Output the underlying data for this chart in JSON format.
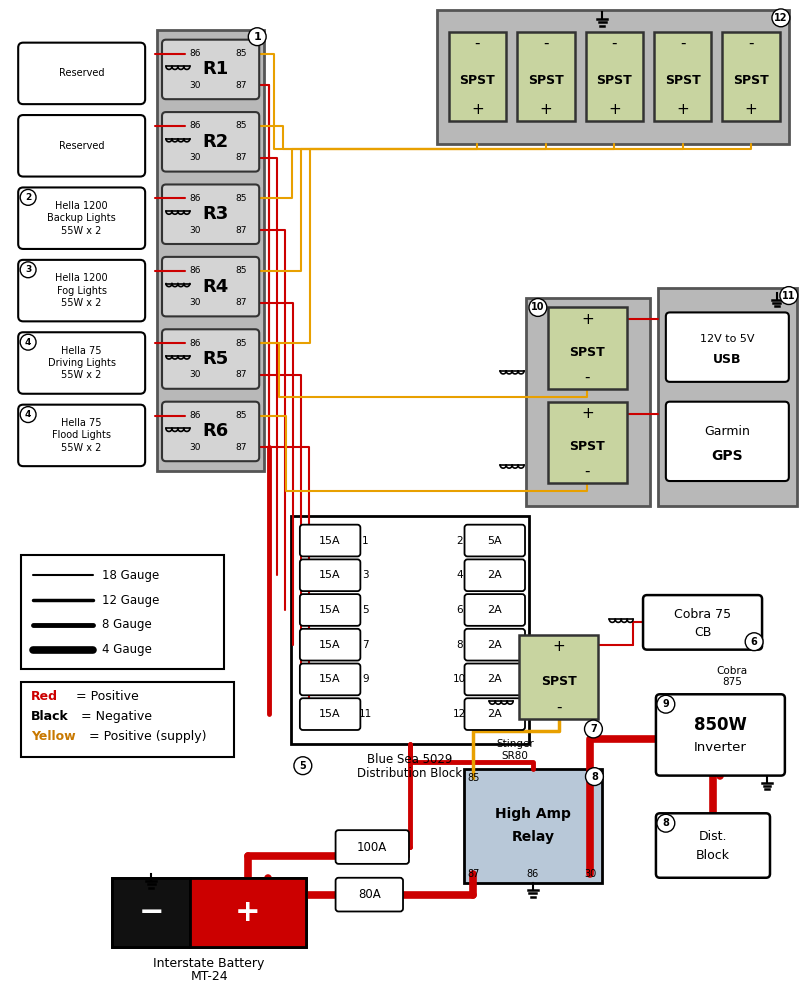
{
  "bg_color": "#ffffff",
  "wire_red": "#cc0000",
  "wire_yellow": "#e8a000",
  "wire_black": "#111111",
  "spst_color": "#c8d4a0",
  "spst_border": "#333333",
  "relay_panel_color": "#b8b8b8",
  "relay_body_color": "#d0d0d0",
  "relay_labels": [
    "R1",
    "R2",
    "R3",
    "R4",
    "R5",
    "R6"
  ],
  "relay_left_labels": [
    "Reserved",
    "Reserved",
    "Hella 1200\nBackup Lights\n55W x 2",
    "Hella 1200\nFog Lights\n55W x 2",
    "Hella 75\nDriving Lights\n55W x 2",
    "Hella 75\nFlood Lights\n55W x 2"
  ],
  "circle_nums": [
    "",
    "",
    "2",
    "3",
    "4",
    "4"
  ],
  "fuse_left": [
    "15A",
    "15A",
    "15A",
    "15A",
    "15A",
    "15A"
  ],
  "fuse_right": [
    "5A",
    "2A",
    "2A",
    "2A",
    "2A",
    "2A"
  ],
  "fuse_left_nums": [
    1,
    3,
    5,
    7,
    9,
    11
  ],
  "fuse_right_nums": [
    2,
    4,
    6,
    8,
    10,
    12
  ],
  "lw1": 1.5,
  "lw2": 2.5,
  "lw3": 3.5,
  "lw4": 5.5
}
